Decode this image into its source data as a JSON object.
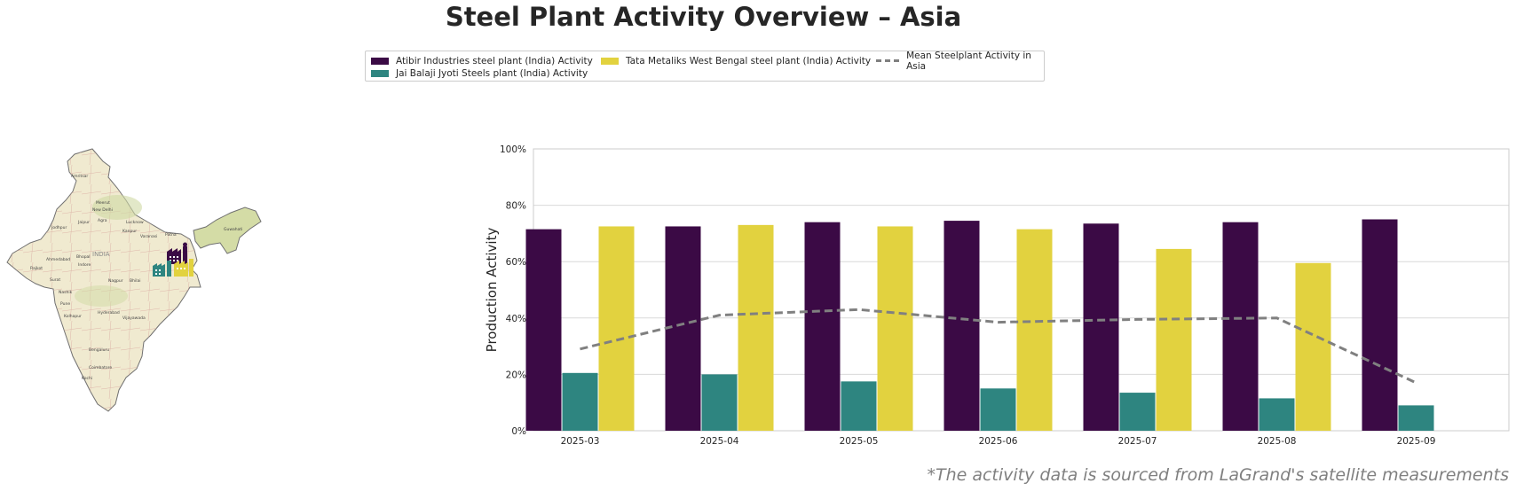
{
  "title": "Steel Plant Activity Overview – Asia",
  "footnote": "*The activity data is sourced from LaGrand's satellite measurements",
  "colors": {
    "atibir": "#3b0a45",
    "jai_balaji": "#2e8580",
    "tata": "#e2d23f",
    "mean": "#808080",
    "grid": "#d9d9d9"
  },
  "map": {
    "labels": [
      "INDIA",
      "Amritsar",
      "Meerut",
      "New Delhi",
      "Jaipur",
      "Agra",
      "Lucknow",
      "Kanpur",
      "Varanasi",
      "Patna",
      "Jodhpur",
      "Guwahati",
      "Ahmedabad",
      "Bhopal",
      "Indore",
      "Rajkot",
      "Surat",
      "Nagpur",
      "Bhilai",
      "Nashik",
      "Pune",
      "Hyderabad",
      "Kolhapur",
      "Vijayawada",
      "Bengaluru",
      "Coimbatore",
      "Kochi"
    ]
  },
  "chart_data": {
    "type": "bar",
    "categories": [
      "2025-03",
      "2025-04",
      "2025-05",
      "2025-06",
      "2025-07",
      "2025-08",
      "2025-09"
    ],
    "series": [
      {
        "name": "Atibir Industries steel plant (India) Activity",
        "values": [
          71.5,
          72.5,
          74,
          74.5,
          73.5,
          74,
          75
        ]
      },
      {
        "name": "Jai Balaji Jyoti Steels plant (India) Activity",
        "values": [
          20.5,
          20,
          17.5,
          15,
          13.5,
          11.5,
          9
        ]
      },
      {
        "name": "Tata Metaliks West Bengal steel plant (India) Activity",
        "values": [
          72.5,
          73,
          72.5,
          71.5,
          64.5,
          59.5,
          null
        ]
      }
    ],
    "line_series": {
      "name": "Mean Steelplant Activity in Asia",
      "values": [
        29,
        41,
        43,
        38.5,
        39.5,
        40,
        17
      ]
    },
    "ylabel": "Production Activity",
    "xlabel": "",
    "ylim": [
      0,
      100
    ],
    "yticks": [
      "0%",
      "20%",
      "40%",
      "60%",
      "80%",
      "100%"
    ],
    "grid": true,
    "legend_position": "top-center"
  }
}
